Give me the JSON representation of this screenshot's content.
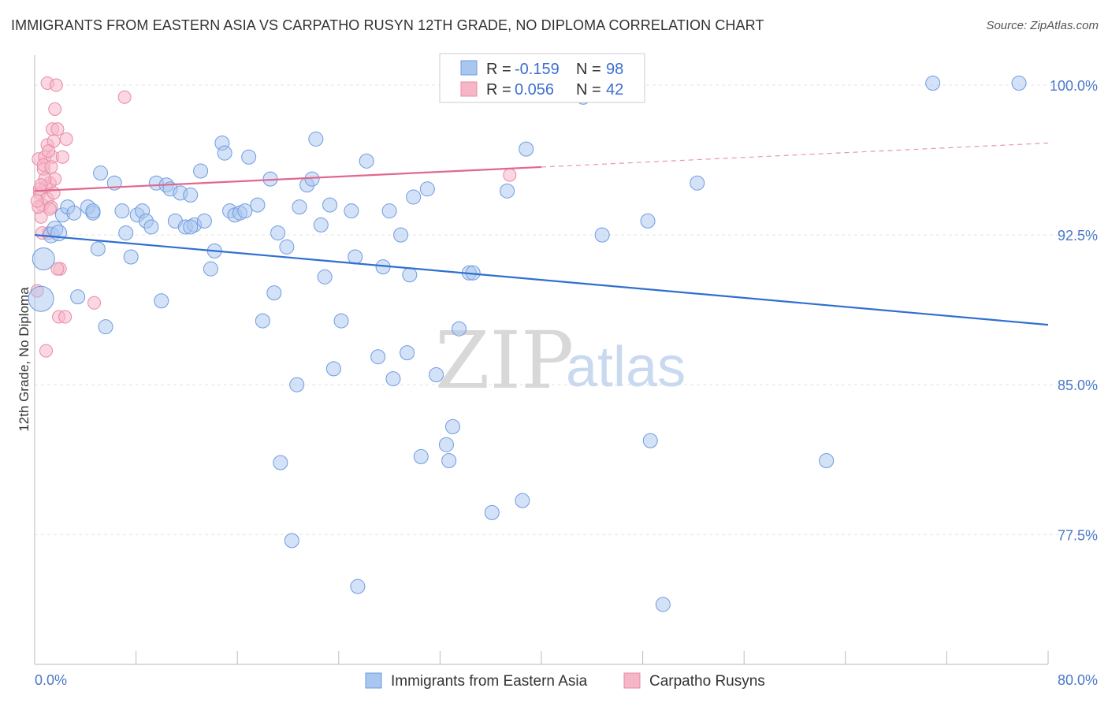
{
  "header": {
    "title": "IMMIGRANTS FROM EASTERN ASIA VS CARPATHO RUSYN 12TH GRADE, NO DIPLOMA CORRELATION CHART",
    "source": "Source: ZipAtlas.com"
  },
  "watermark": {
    "zip": "ZIP",
    "atlas": "atlas"
  },
  "legend_box": {
    "rows": [
      {
        "r_label": "R =",
        "r_value": "-0.159",
        "n_label": "N =",
        "n_value": "98"
      },
      {
        "r_label": "R =",
        "r_value": "0.056",
        "n_label": "N =",
        "n_value": "42"
      }
    ]
  },
  "chart_data": {
    "type": "scatter",
    "title": "IMMIGRANTS FROM EASTERN ASIA VS CARPATHO RUSYN 12TH GRADE, NO DIPLOMA CORRELATION CHART",
    "xlabel": "",
    "ylabel": "12th Grade, No Diploma",
    "xlim": [
      0,
      80
    ],
    "ylim": [
      71.0,
      101.5
    ],
    "x_tick_labels": [
      "0.0%",
      "80.0%"
    ],
    "y_ticks": [
      77.5,
      85.0,
      92.5,
      100.0
    ],
    "y_tick_labels": [
      "77.5%",
      "85.0%",
      "92.5%",
      "100.0%"
    ],
    "grid": true,
    "colors": {
      "blue_fill": "#a9c6f0",
      "blue_stroke": "#6d9be0",
      "blue_line": "#2f6fd0",
      "pink_fill": "#f5b6c8",
      "pink_stroke": "#e98aa6",
      "pink_line": "#e0688f"
    },
    "series": [
      {
        "name": "Immigrants from Eastern Asia",
        "color": "#a9c6f0",
        "trend": {
          "x": [
            0,
            80
          ],
          "y": [
            92.5,
            88.0
          ]
        },
        "points": [
          [
            0.5,
            89.3,
            16
          ],
          [
            0.7,
            91.3,
            14
          ],
          [
            1.3,
            92.5,
            10
          ],
          [
            1.6,
            92.8,
            10
          ],
          [
            2.2,
            93.5,
            9
          ],
          [
            2.6,
            93.9,
            9
          ],
          [
            3.1,
            93.6,
            9
          ],
          [
            3.4,
            89.4,
            9
          ],
          [
            4.2,
            93.9,
            9
          ],
          [
            4.6,
            93.6,
            9
          ],
          [
            5.0,
            91.8,
            9
          ],
          [
            5.2,
            95.6,
            9
          ],
          [
            5.6,
            87.9,
            9
          ],
          [
            6.3,
            95.1,
            9
          ],
          [
            6.9,
            93.7,
            9
          ],
          [
            7.2,
            92.6,
            9
          ],
          [
            7.6,
            91.4,
            9
          ],
          [
            8.1,
            93.5,
            9
          ],
          [
            8.5,
            93.7,
            9
          ],
          [
            8.8,
            93.2,
            9
          ],
          [
            9.2,
            92.9,
            9
          ],
          [
            9.6,
            95.1,
            9
          ],
          [
            10.0,
            89.2,
            9
          ],
          [
            10.4,
            95.0,
            9
          ],
          [
            10.7,
            94.8,
            9
          ],
          [
            11.1,
            93.2,
            9
          ],
          [
            11.5,
            94.6,
            9
          ],
          [
            11.9,
            92.9,
            9
          ],
          [
            12.3,
            94.5,
            9
          ],
          [
            12.6,
            93.0,
            9
          ],
          [
            13.1,
            95.7,
            9
          ],
          [
            13.4,
            93.2,
            9
          ],
          [
            13.9,
            90.8,
            9
          ],
          [
            14.2,
            91.7,
            9
          ],
          [
            14.8,
            97.1,
            9
          ],
          [
            15.0,
            96.6,
            9
          ],
          [
            15.4,
            93.7,
            9
          ],
          [
            15.8,
            93.5,
            9
          ],
          [
            16.2,
            93.6,
            9
          ],
          [
            16.6,
            93.7,
            9
          ],
          [
            16.9,
            96.4,
            9
          ],
          [
            17.6,
            94.0,
            9
          ],
          [
            18.0,
            88.2,
            9
          ],
          [
            18.6,
            95.3,
            9
          ],
          [
            18.9,
            89.6,
            9
          ],
          [
            19.2,
            92.6,
            9
          ],
          [
            19.9,
            91.9,
            9
          ],
          [
            20.7,
            85.0,
            9
          ],
          [
            20.9,
            93.9,
            9
          ],
          [
            21.5,
            95.0,
            9
          ],
          [
            21.9,
            95.3,
            9
          ],
          [
            22.2,
            97.3,
            9
          ],
          [
            22.6,
            93.0,
            9
          ],
          [
            22.9,
            90.4,
            9
          ],
          [
            23.3,
            94.0,
            9
          ],
          [
            23.6,
            85.8,
            9
          ],
          [
            24.2,
            88.2,
            9
          ],
          [
            25.0,
            93.7,
            9
          ],
          [
            25.3,
            91.4,
            9
          ],
          [
            26.2,
            96.2,
            9
          ],
          [
            27.1,
            86.4,
            9
          ],
          [
            27.5,
            90.9,
            9
          ],
          [
            28.0,
            93.7,
            9
          ],
          [
            28.3,
            85.3,
            9
          ],
          [
            28.9,
            92.5,
            9
          ],
          [
            29.4,
            86.6,
            9
          ],
          [
            29.6,
            90.5,
            9
          ],
          [
            29.9,
            94.4,
            9
          ],
          [
            30.5,
            81.4,
            9
          ],
          [
            31.0,
            94.8,
            9
          ],
          [
            31.7,
            85.5,
            9
          ],
          [
            32.5,
            82.0,
            9
          ],
          [
            32.7,
            81.2,
            9
          ],
          [
            33.0,
            82.9,
            9
          ],
          [
            33.5,
            87.8,
            9
          ],
          [
            34.3,
            90.6,
            9
          ],
          [
            34.6,
            90.6,
            9
          ],
          [
            36.1,
            78.6,
            9
          ],
          [
            37.3,
            94.7,
            9
          ],
          [
            37.8,
            100.1,
            9
          ],
          [
            38.5,
            79.2,
            9
          ],
          [
            38.8,
            96.8,
            9
          ],
          [
            43.3,
            99.4,
            9
          ],
          [
            44.8,
            92.5,
            9
          ],
          [
            46.0,
            100.1,
            9
          ],
          [
            48.4,
            93.2,
            9
          ],
          [
            48.6,
            82.2,
            9
          ],
          [
            49.6,
            74.0,
            9
          ],
          [
            52.3,
            95.1,
            9
          ],
          [
            62.5,
            81.2,
            9
          ],
          [
            70.9,
            100.1,
            9
          ],
          [
            77.7,
            100.1,
            9
          ],
          [
            19.4,
            81.1,
            9
          ],
          [
            20.3,
            77.2,
            9
          ],
          [
            25.5,
            74.9,
            9
          ],
          [
            12.3,
            92.9,
            9
          ],
          [
            4.6,
            93.7,
            9
          ],
          [
            1.9,
            92.6,
            10
          ]
        ]
      },
      {
        "name": "Carpatho Rusyns",
        "color": "#f5b6c8",
        "trend": {
          "x": [
            0,
            80
          ],
          "y": [
            94.7,
            97.1
          ],
          "solid_until_x": 40.0
        },
        "points": [
          [
            0.2,
            89.7,
            8
          ],
          [
            0.3,
            96.3,
            8
          ],
          [
            0.4,
            94.6,
            8
          ],
          [
            0.5,
            93.4,
            8
          ],
          [
            0.6,
            94.0,
            8
          ],
          [
            0.7,
            95.8,
            8
          ],
          [
            0.8,
            96.4,
            8
          ],
          [
            0.9,
            94.9,
            8
          ],
          [
            1.0,
            97.0,
            8
          ],
          [
            1.0,
            94.3,
            8
          ],
          [
            1.1,
            92.6,
            8
          ],
          [
            1.2,
            95.1,
            8
          ],
          [
            1.3,
            93.9,
            8
          ],
          [
            1.4,
            96.4,
            8
          ],
          [
            1.5,
            94.6,
            8
          ],
          [
            1.6,
            95.3,
            8
          ],
          [
            1.0,
            100.1,
            8
          ],
          [
            1.4,
            97.8,
            8
          ],
          [
            1.5,
            97.2,
            8
          ],
          [
            1.6,
            98.8,
            8
          ],
          [
            1.7,
            100.0,
            8
          ],
          [
            1.8,
            97.8,
            8
          ],
          [
            1.9,
            88.4,
            8
          ],
          [
            2.0,
            90.8,
            8
          ],
          [
            2.2,
            96.4,
            8
          ],
          [
            2.4,
            88.4,
            8
          ],
          [
            2.5,
            97.3,
            8
          ],
          [
            0.9,
            86.7,
            8
          ],
          [
            4.7,
            89.1,
            8
          ],
          [
            7.1,
            99.4,
            8
          ],
          [
            37.5,
            95.5,
            8
          ],
          [
            0.4,
            94.8,
            8
          ],
          [
            0.6,
            92.6,
            8
          ],
          [
            0.8,
            95.3,
            8
          ],
          [
            1.1,
            96.7,
            8
          ],
          [
            1.2,
            93.8,
            8
          ],
          [
            0.5,
            95.0,
            8
          ],
          [
            0.3,
            93.9,
            8
          ],
          [
            0.7,
            96.0,
            8
          ],
          [
            1.3,
            95.9,
            8
          ],
          [
            0.2,
            94.2,
            8
          ],
          [
            1.8,
            90.8,
            8
          ]
        ]
      }
    ]
  },
  "bottom_legend": {
    "items": [
      {
        "label": "Immigrants from Eastern Asia"
      },
      {
        "label": "Carpatho Rusyns"
      }
    ]
  }
}
